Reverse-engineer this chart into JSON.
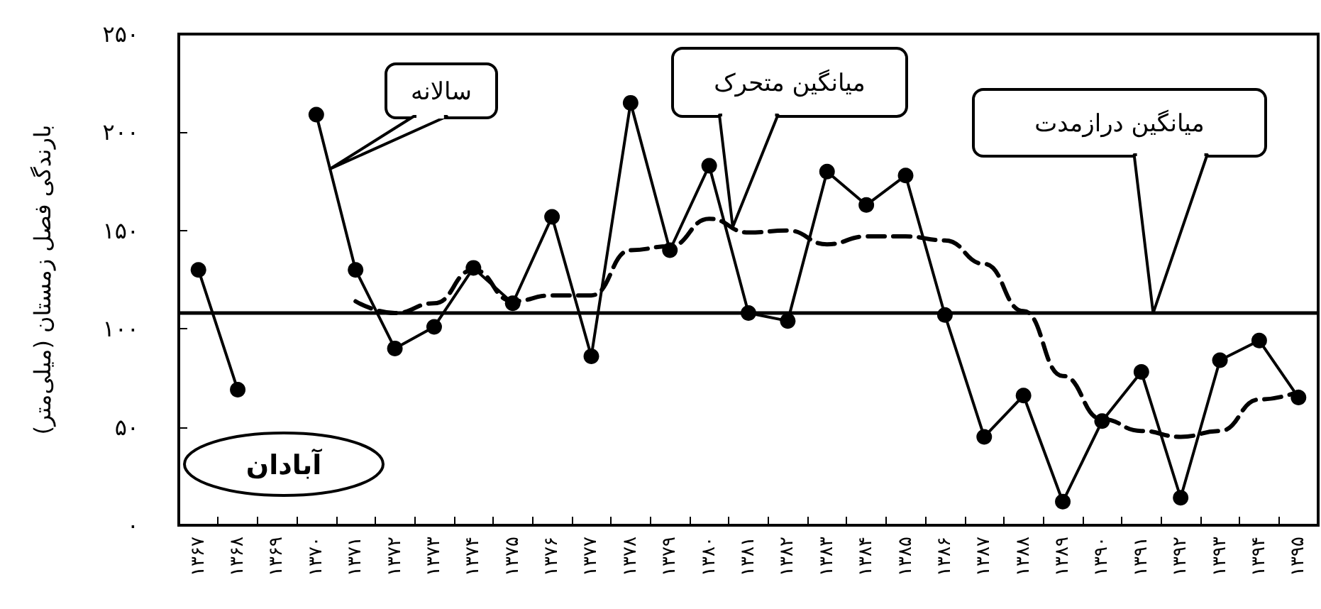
{
  "chart_data": {
    "type": "line",
    "title": "آبادان",
    "ylabel": "بارندگی فصل زمستان (میلی‌متر)",
    "categories": [
      "۱۳۶۷",
      "۱۳۶۸",
      "۱۳۶۹",
      "۱۳۷۰",
      "۱۳۷۱",
      "۱۳۷۲",
      "۱۳۷۳",
      "۱۳۷۴",
      "۱۳۷۵",
      "۱۳۷۶",
      "۱۳۷۷",
      "۱۳۷۸",
      "۱۳۷۹",
      "۱۳۸۰",
      "۱۳۸۱",
      "۱۳۸۲",
      "۱۳۸۳",
      "۱۳۸۴",
      "۱۳۸۵",
      "۱۳۸۶",
      "۱۳۸۷",
      "۱۳۸۸",
      "۱۳۸۹",
      "۱۳۹۰",
      "۱۳۹۱",
      "۱۳۹۲",
      "۱۳۹۳",
      "۱۳۹۴",
      "۱۳۹۵"
    ],
    "series": [
      {
        "name": "سالانه",
        "color": "#000000",
        "marker": "circle",
        "line_style": "solid",
        "values": [
          130,
          69,
          null,
          209,
          130,
          90,
          101,
          131,
          113,
          157,
          86,
          215,
          140,
          183,
          108,
          104,
          180,
          163,
          178,
          107,
          45,
          66,
          12,
          53,
          78,
          14,
          84,
          94,
          65
        ]
      },
      {
        "name": "میانگین متحرک",
        "color": "#000000",
        "marker": "none",
        "line_style": "dashed",
        "values": [
          null,
          null,
          null,
          null,
          114,
          108,
          113,
          130,
          114,
          117,
          117,
          140,
          142,
          156,
          149,
          150,
          143,
          147,
          147,
          145,
          133,
          109,
          76,
          54,
          48,
          45,
          48,
          64,
          68
        ]
      }
    ],
    "ref_lines": [
      {
        "axis": "y",
        "value": 108,
        "label": "میانگین درازمدت",
        "color": "#000000"
      }
    ],
    "ylim": [
      0,
      250
    ],
    "yticks": [
      {
        "value": 0,
        "label": "۰"
      },
      {
        "value": 50,
        "label": "۵۰"
      },
      {
        "value": 100,
        "label": "۱۰۰"
      },
      {
        "value": 150,
        "label": "۱۵۰"
      },
      {
        "value": 200,
        "label": "۲۰۰"
      },
      {
        "value": 250,
        "label": "۲۵۰"
      }
    ],
    "grid": false,
    "legend": false
  }
}
